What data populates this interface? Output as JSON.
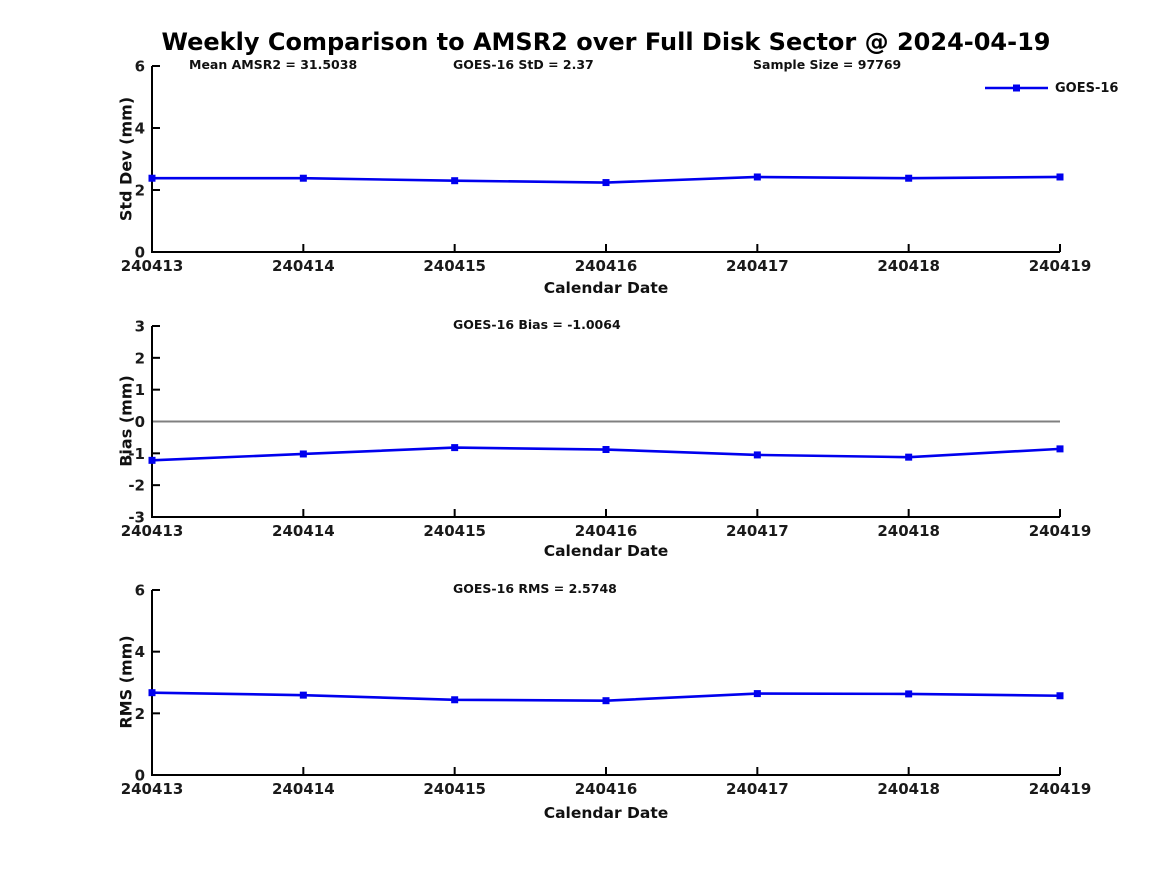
{
  "title": "Weekly Comparison to AMSR2 over Full Disk Sector @ 2024-04-19",
  "legend": {
    "label": "GOES-16",
    "color": "#0000EE",
    "marker": "square"
  },
  "colors": {
    "line": "#0000EE",
    "axis": "#000000",
    "zero_line": "#808080",
    "text": "#1a1a1a"
  },
  "chart_data": [
    {
      "type": "line",
      "subplot": "std-dev",
      "annotations": [
        "Mean AMSR2 = 31.5038",
        "GOES-16 StD = 2.37",
        "Sample Size = 97769"
      ],
      "ylabel": "Std Dev (mm)",
      "xlabel": "Calendar Date",
      "categories": [
        "240413",
        "240414",
        "240415",
        "240416",
        "240417",
        "240418",
        "240419"
      ],
      "yticks": [
        0,
        2,
        4,
        6
      ],
      "ylim": [
        0,
        6
      ],
      "grid": false,
      "zero_line": false,
      "legend_position": "top-right",
      "series": [
        {
          "name": "GOES-16",
          "color": "#0000EE",
          "values": [
            2.38,
            2.38,
            2.3,
            2.24,
            2.42,
            2.38,
            2.42
          ]
        }
      ]
    },
    {
      "type": "line",
      "subplot": "bias",
      "annotations": [
        "GOES-16 Bias  = -1.0064"
      ],
      "ylabel": "Bias (mm)",
      "xlabel": "Calendar Date",
      "categories": [
        "240413",
        "240414",
        "240415",
        "240416",
        "240417",
        "240418",
        "240419"
      ],
      "yticks": [
        3,
        2,
        1,
        0,
        -1,
        -2,
        -3
      ],
      "ylim": [
        -3,
        3
      ],
      "grid": false,
      "zero_line": true,
      "series": [
        {
          "name": "GOES-16",
          "color": "#0000EE",
          "values": [
            -1.22,
            -1.02,
            -0.82,
            -0.88,
            -1.05,
            -1.12,
            -0.86
          ]
        }
      ]
    },
    {
      "type": "line",
      "subplot": "rms",
      "annotations": [
        "GOES-16 RMS = 2.5748"
      ],
      "ylabel": "RMS (mm)",
      "xlabel": "Calendar Date",
      "categories": [
        "240413",
        "240414",
        "240415",
        "240416",
        "240417",
        "240418",
        "240419"
      ],
      "yticks": [
        0,
        2,
        4,
        6
      ],
      "ylim": [
        0,
        6
      ],
      "grid": false,
      "zero_line": false,
      "series": [
        {
          "name": "GOES-16",
          "color": "#0000EE",
          "values": [
            2.67,
            2.59,
            2.44,
            2.41,
            2.64,
            2.63,
            2.57
          ]
        }
      ]
    }
  ]
}
